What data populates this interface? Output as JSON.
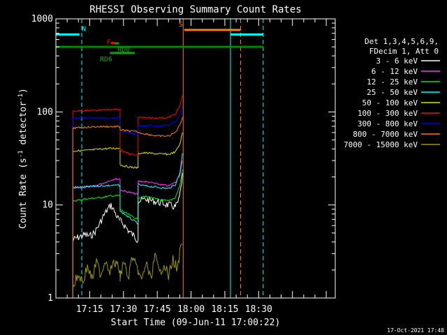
{
  "chart_data": {
    "type": "line",
    "title": "RHESSI Observing Summary Count Rates",
    "xlabel": "Start Time (09-Jun-11 17:00:22)",
    "ylabel_main": "Count Rate (s",
    "ylabel_sup1": "-1",
    "ylabel_mid": " detector",
    "ylabel_sup2": "-1",
    "ylabel_end": ")",
    "footer": "17-Oct-2021 17:48",
    "x_range_min": [
      0,
      124
    ],
    "y_range": [
      1,
      1000
    ],
    "y_scale": "log",
    "x_ticks": [
      {
        "min": 15,
        "label": "17:15"
      },
      {
        "min": 30,
        "label": "17:30"
      },
      {
        "min": 45,
        "label": "17:45"
      },
      {
        "min": 60,
        "label": "18:00"
      },
      {
        "min": 75,
        "label": "18:15"
      },
      {
        "min": 90,
        "label": "18:30"
      }
    ],
    "y_ticks": [
      {
        "v": 1,
        "label": "1"
      },
      {
        "v": 10,
        "label": "10"
      },
      {
        "v": 100,
        "label": "100"
      },
      {
        "v": 1000,
        "label": "1000"
      }
    ],
    "legend_header": [
      "Det 1,3,4,5,6,9,",
      "FDecim 1, Att 0"
    ],
    "series": [
      {
        "name": "3 - 6 keV",
        "color": "#ffffff",
        "segs": [
          [
            [
              7.5,
              4.2
            ],
            [
              10,
              4.5
            ],
            [
              13,
              4.8
            ],
            [
              15,
              4.6
            ],
            [
              17,
              5.0
            ],
            [
              19,
              6.0
            ],
            [
              21,
              7.5
            ],
            [
              23,
              9
            ],
            [
              24.5,
              10
            ],
            [
              26,
              8.5
            ],
            [
              27.5,
              7.2
            ],
            [
              28.5,
              6.8
            ]
          ],
          [
            [
              28.5,
              6.8
            ],
            [
              30,
              6.2
            ],
            [
              31,
              5.8
            ],
            [
              32.5,
              5.2
            ],
            [
              34,
              4.8
            ],
            [
              35.5,
              4.4
            ],
            [
              36.5,
              4.2
            ]
          ],
          [
            [
              36.5,
              11
            ],
            [
              40,
              11.5
            ],
            [
              45,
              10.8
            ],
            [
              50,
              10.0
            ],
            [
              53,
              9.5
            ],
            [
              54.5,
              11
            ],
            [
              55.5,
              15
            ],
            [
              56.2,
              22
            ]
          ]
        ]
      },
      {
        "name": "6 - 12 keV",
        "color": "#ff33ff",
        "segs": [
          [
            [
              7.5,
              15
            ],
            [
              10,
              15.2
            ],
            [
              13,
              15.5
            ],
            [
              16,
              15.8
            ],
            [
              19,
              16.5
            ],
            [
              22,
              17.5
            ],
            [
              24.5,
              18.5
            ],
            [
              26,
              19
            ],
            [
              28.5,
              19
            ]
          ],
          [
            [
              28.5,
              14.5
            ],
            [
              31,
              14.0
            ],
            [
              33.5,
              13.5
            ],
            [
              36.5,
              13.0
            ]
          ],
          [
            [
              36.5,
              18
            ],
            [
              40,
              17.8
            ],
            [
              45,
              16.8
            ],
            [
              50,
              16.0
            ],
            [
              53,
              17.5
            ],
            [
              55,
              21
            ],
            [
              56.2,
              30
            ]
          ]
        ]
      },
      {
        "name": "12 - 25 keV",
        "color": "#00ee00",
        "segs": [
          [
            [
              7.5,
              11.0
            ],
            [
              12,
              11.5
            ],
            [
              16,
              11.8
            ],
            [
              20,
              12.0
            ],
            [
              24,
              12.5
            ],
            [
              28.5,
              12.6
            ]
          ],
          [
            [
              28.5,
              9.0
            ],
            [
              31,
              8.2
            ],
            [
              33.5,
              7.6
            ],
            [
              36.5,
              7.0
            ]
          ],
          [
            [
              36.5,
              12
            ],
            [
              40,
              12.3
            ],
            [
              45,
              11.5
            ],
            [
              50,
              11.0
            ],
            [
              53,
              12
            ],
            [
              55,
              16
            ],
            [
              56.2,
              24
            ]
          ]
        ]
      },
      {
        "name": "25 - 50 keV",
        "color": "#00ffff",
        "segs": [
          [
            [
              7.5,
              15.5
            ],
            [
              12,
              15.6
            ],
            [
              16,
              15.8
            ],
            [
              20,
              16
            ],
            [
              24,
              16.2
            ],
            [
              28.5,
              16.3
            ]
          ],
          [
            [
              28.5,
              8.5
            ],
            [
              30.5,
              8.0
            ],
            [
              32.5,
              7.3
            ],
            [
              34.5,
              6.8
            ],
            [
              36.5,
              6.3
            ]
          ],
          [
            [
              36.5,
              16.5
            ],
            [
              40,
              16.0
            ],
            [
              45,
              15.5
            ],
            [
              50,
              15.0
            ],
            [
              53,
              16.5
            ],
            [
              55,
              22
            ],
            [
              56.2,
              36
            ]
          ]
        ]
      },
      {
        "name": "50 - 100 keV",
        "color": "#dddd00",
        "segs": [
          [
            [
              7.5,
              38
            ],
            [
              12,
              38.5
            ],
            [
              16,
              39
            ],
            [
              20,
              40
            ],
            [
              24,
              40.5
            ],
            [
              28.5,
              40.8
            ]
          ],
          [
            [
              28.5,
              27
            ],
            [
              31,
              26
            ],
            [
              33.5,
              25.5
            ],
            [
              36.5,
              25
            ]
          ],
          [
            [
              36.5,
              36
            ],
            [
              40,
              36.2
            ],
            [
              45,
              35.5
            ],
            [
              50,
              35
            ],
            [
              53,
              37
            ],
            [
              55,
              45
            ],
            [
              56.2,
              60
            ]
          ]
        ]
      },
      {
        "name": "100 - 300 keV",
        "color": "#ff0000",
        "segs": [
          [
            [
              7.5,
              102
            ],
            [
              12,
              103
            ],
            [
              16,
              104
            ],
            [
              20,
              105
            ],
            [
              24,
              106
            ],
            [
              28.5,
              107
            ]
          ],
          [
            [
              28.5,
              39
            ],
            [
              31,
              36.5
            ],
            [
              33.5,
              35
            ],
            [
              36.5,
              34
            ]
          ],
          [
            [
              36.5,
              88
            ],
            [
              40,
              86
            ],
            [
              45,
              86
            ],
            [
              50,
              87
            ],
            [
              53,
              95
            ],
            [
              55,
              115
            ],
            [
              56.2,
              150
            ]
          ]
        ]
      },
      {
        "name": "300 - 800 keV",
        "color": "#0000ff",
        "segs": [
          [
            [
              7.5,
              86
            ],
            [
              12,
              86.5
            ],
            [
              16,
              86.5
            ],
            [
              20,
              86
            ],
            [
              24,
              86
            ],
            [
              28.5,
              86
            ]
          ],
          [
            [
              28.5,
              63
            ],
            [
              31,
              61
            ],
            [
              33.5,
              59
            ],
            [
              36.5,
              57
            ]
          ],
          [
            [
              36.5,
              72
            ],
            [
              40,
              71
            ],
            [
              45,
              71
            ],
            [
              50,
              72
            ],
            [
              53,
              78
            ],
            [
              55,
              92
            ],
            [
              56.2,
              112
            ]
          ]
        ]
      },
      {
        "name": "800 - 7000 keV",
        "color": "#ff7f00",
        "segs": [
          [
            [
              7.5,
              67
            ],
            [
              12,
              68
            ],
            [
              16,
              69
            ],
            [
              20,
              69.5
            ],
            [
              24,
              69.5
            ],
            [
              28.5,
              69.5
            ]
          ],
          [
            [
              28.5,
              64
            ],
            [
              31,
              63
            ],
            [
              33.5,
              62
            ],
            [
              36.5,
              61
            ]
          ],
          [
            [
              36.5,
              60
            ],
            [
              40,
              58
            ],
            [
              45,
              55
            ],
            [
              50,
              55
            ],
            [
              53,
              60
            ],
            [
              55,
              72
            ],
            [
              56.2,
              88
            ]
          ]
        ]
      },
      {
        "name": "7000 - 15000 keV",
        "color": "#999900",
        "segs": [
          [
            [
              7.5,
              1.3
            ],
            [
              10,
              1.8
            ],
            [
              12,
              1.5
            ],
            [
              14,
              2.2
            ],
            [
              16,
              1.6
            ],
            [
              18,
              2.4
            ],
            [
              20,
              1.8
            ],
            [
              22,
              2.6
            ],
            [
              24,
              2.0
            ],
            [
              26,
              2.4
            ],
            [
              28.5,
              2.0
            ]
          ],
          [
            [
              28.5,
              1.5
            ],
            [
              30,
              2.6
            ],
            [
              32,
              1.6
            ],
            [
              34,
              2.8
            ],
            [
              36.5,
              1.8
            ]
          ],
          [
            [
              36.5,
              2.0
            ],
            [
              38,
              1.5
            ],
            [
              40,
              2.4
            ],
            [
              42,
              1.6
            ],
            [
              44,
              2.8
            ],
            [
              46,
              1.8
            ],
            [
              48,
              2.4
            ],
            [
              50,
              1.7
            ],
            [
              52,
              2.6
            ],
            [
              54,
              2.0
            ],
            [
              55,
              3.0
            ],
            [
              56.2,
              3.8
            ]
          ]
        ]
      }
    ],
    "vlines": [
      {
        "min": 0,
        "color": "#00ffff",
        "dash": false
      },
      {
        "min": 11.5,
        "color": "#00ffff",
        "dash": true
      },
      {
        "min": 56.5,
        "color": "#ff7f00",
        "dash": false
      },
      {
        "min": 77.5,
        "color": "#00ffff",
        "dash": false
      },
      {
        "min": 82,
        "color": "#ff7f00",
        "dash": true
      },
      {
        "min": 92,
        "color": "#00ffff",
        "dash": true
      }
    ],
    "flags": [
      {
        "label": "N",
        "color": "#00ffff",
        "y": 680,
        "bars": [
          [
            0,
            10.5
          ],
          [
            77.5,
            92
          ]
        ],
        "label_min": 11.5
      },
      {
        "label": "S",
        "color": "#ff7f00",
        "y": 760,
        "bars": [
          [
            57,
            82
          ]
        ],
        "label_min": 54.5
      },
      {
        "label": "",
        "color": "#008800",
        "y": 500,
        "bars": [
          [
            0,
            92
          ]
        ],
        "label_min": null
      },
      {
        "label": "F",
        "color": "#ff0000",
        "y": 550,
        "bars": [
          [
            24.5,
            26
          ]
        ],
        "label_min": 22.5
      },
      {
        "label": "RD0",
        "color": "#00aa00",
        "y": 545,
        "bars": [
          [
            26,
            28
          ]
        ],
        "label_min": 27.3
      },
      {
        "label": "RD6",
        "color": "#00aa00",
        "y": 430,
        "bars": [
          [
            24,
            35
          ]
        ],
        "label_min": 19.5
      }
    ]
  }
}
